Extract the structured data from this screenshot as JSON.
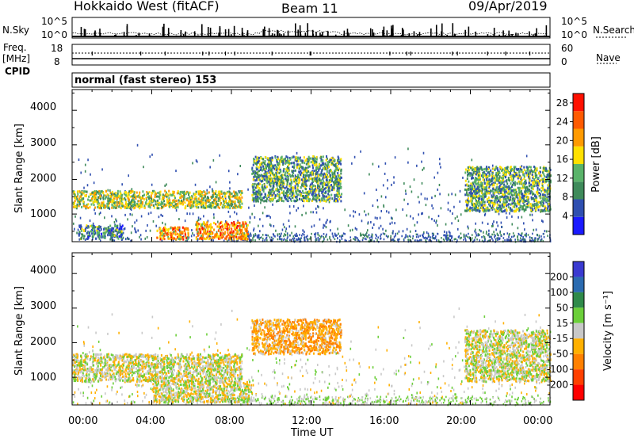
{
  "header": {
    "radar": "Hokkaido West (fitACF)",
    "beam": "Beam 11",
    "date": "09/Apr/2019"
  },
  "noise_panel": {
    "left_label": "N.Sky",
    "right_label": "N.Search",
    "left_ticks": [
      "10^5",
      "10^0"
    ],
    "right_ticks": [
      "10^5",
      "10^0"
    ]
  },
  "freq_panel": {
    "left_label_1": "Freq.",
    "left_label_2": "[MHz]",
    "left_label_3": "CPID",
    "right_label": "Nave",
    "left_ticks": [
      "18",
      "8"
    ],
    "right_ticks": [
      "60",
      "0"
    ],
    "cpid_text": "normal (fast stereo) 153"
  },
  "colors": {
    "power_scale": [
      "#1a1aff",
      "#2f4fb0",
      "#3e8a5a",
      "#5ab36a",
      "#ffe000",
      "#ff9a00",
      "#ff5a00",
      "#ff1000"
    ],
    "velocity_scale": [
      "#3a3ad0",
      "#2b6bb0",
      "#2f8a4a",
      "#6ccf3a",
      "#c8c8c8",
      "#ffb000",
      "#ff8000",
      "#ff4000",
      "#ff0000"
    ]
  },
  "chart_data": [
    {
      "type": "heatmap",
      "title": "",
      "ylabel": "Slant Range [km]",
      "xlabel": "",
      "ylim": [
        200,
        4600
      ],
      "yticks": [
        "1000",
        "2000",
        "3000",
        "4000"
      ],
      "xticks": [
        "00:00",
        "04:00",
        "08:00",
        "12:00",
        "16:00",
        "20:00",
        "00:00"
      ],
      "colorbar": {
        "label": "Power [dB]",
        "ticks": [
          "4",
          "8",
          "12",
          "16",
          "20",
          "24",
          "28"
        ],
        "range": [
          0,
          30
        ]
      },
      "echo_regions": [
        {
          "t_start": 0.0,
          "t_end": 8.5,
          "range_km": [
            1200,
            1700
          ],
          "power_db": 22
        },
        {
          "t_start": 0.3,
          "t_end": 2.5,
          "range_km": [
            300,
            700
          ],
          "power_db": 16
        },
        {
          "t_start": 4.2,
          "t_end": 5.8,
          "range_km": [
            300,
            650
          ],
          "power_db": 28
        },
        {
          "t_start": 6.2,
          "t_end": 8.8,
          "range_km": [
            300,
            800
          ],
          "power_db": 28
        },
        {
          "t_start": 9.0,
          "t_end": 13.5,
          "range_km": [
            1400,
            2700
          ],
          "power_db": 18
        },
        {
          "t_start": 19.7,
          "t_end": 24.0,
          "range_km": [
            1100,
            2400
          ],
          "power_db": 18
        }
      ]
    },
    {
      "type": "heatmap",
      "title": "",
      "ylabel": "Slant Range [km]",
      "xlabel": "Time UT",
      "ylim": [
        200,
        4600
      ],
      "yticks": [
        "1000",
        "2000",
        "3000",
        "4000"
      ],
      "xticks": [
        "00:00",
        "04:00",
        "08:00",
        "12:00",
        "16:00",
        "20:00",
        "00:00"
      ],
      "colorbar": {
        "label": "Velocity [m s⁻¹]",
        "ticks": [
          "200",
          "100",
          "50",
          "15",
          "-15",
          "-50",
          "-100",
          "-200"
        ],
        "range": [
          -250,
          250
        ]
      },
      "echo_regions": [
        {
          "t_start": 0.0,
          "t_end": 8.5,
          "range_km": [
            900,
            1700
          ],
          "velocity_ms": 0
        },
        {
          "t_start": 4.0,
          "t_end": 9.0,
          "range_km": [
            300,
            900
          ],
          "velocity_ms": 0
        },
        {
          "t_start": 9.0,
          "t_end": 13.5,
          "range_km": [
            1700,
            2700
          ],
          "velocity_ms": -40
        },
        {
          "t_start": 19.7,
          "t_end": 24.0,
          "range_km": [
            900,
            2400
          ],
          "velocity_ms": 0
        }
      ]
    }
  ]
}
